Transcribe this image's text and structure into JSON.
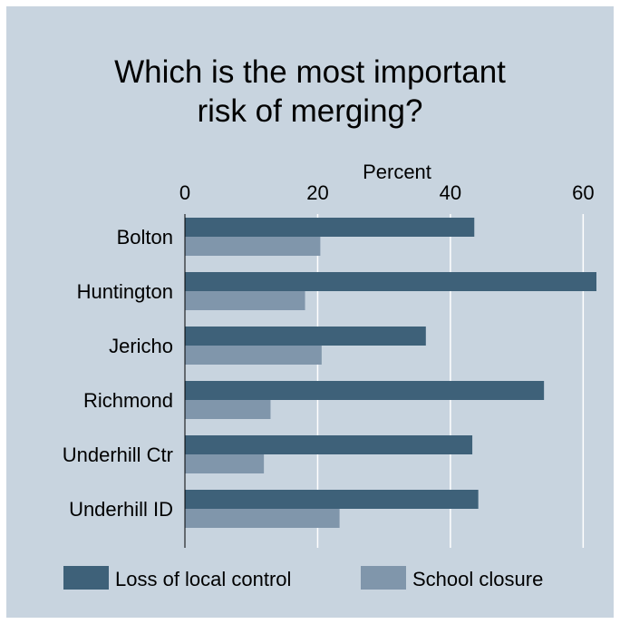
{
  "chart_data": {
    "type": "bar",
    "orientation": "horizontal",
    "title": [
      "Which is the most important",
      "risk of merging?"
    ],
    "xlabel": "Percent",
    "xlim": [
      0,
      62
    ],
    "xticks": [
      0,
      20,
      40,
      60
    ],
    "grid": true,
    "legend_position": "bottom",
    "categories": [
      "Bolton",
      "Huntington",
      "Jericho",
      "Richmond",
      "Underhill Ctr",
      "Underhill ID"
    ],
    "series": [
      {
        "name": "Loss of local control",
        "color": "#3e6179",
        "values": [
          43.6,
          62.0,
          36.3,
          54.1,
          43.3,
          44.2
        ]
      },
      {
        "name": "School closure",
        "color": "#8096ab",
        "values": [
          20.4,
          18.1,
          20.6,
          12.9,
          11.9,
          23.3
        ]
      }
    ]
  }
}
